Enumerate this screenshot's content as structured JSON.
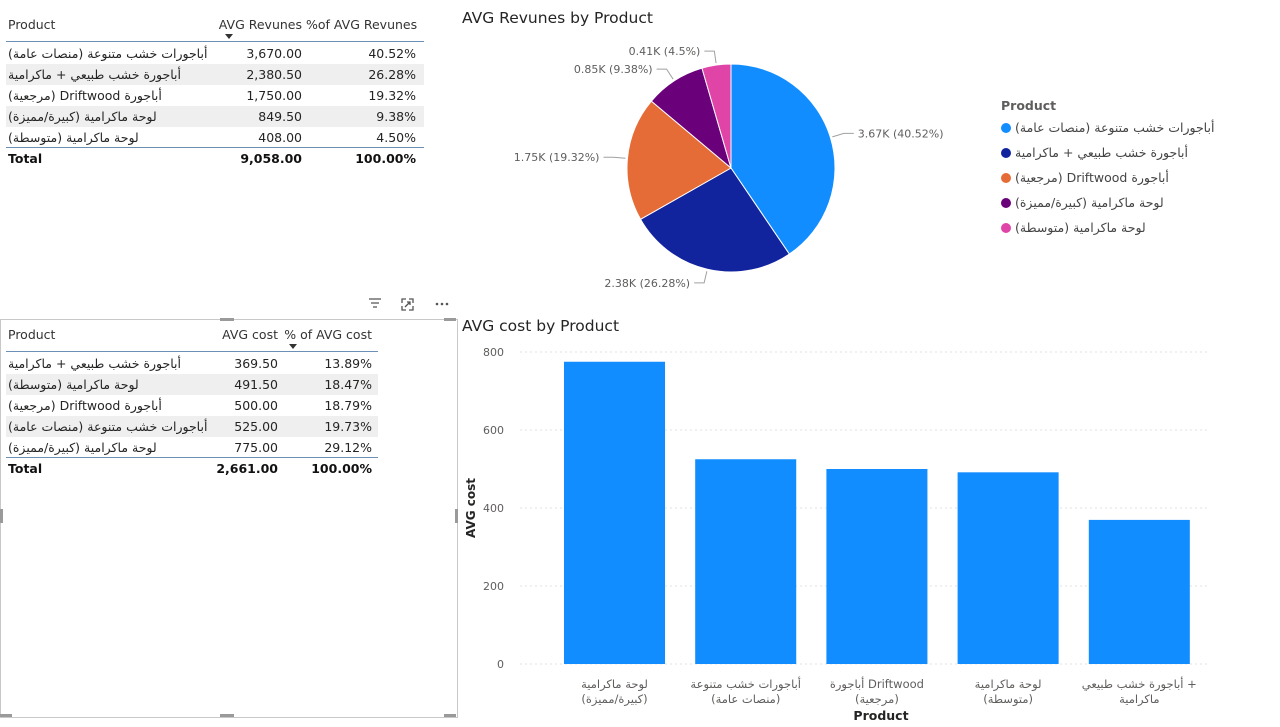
{
  "revenue_table": {
    "headers": [
      "Product",
      "AVG Revunes",
      "%of AVG Revunes"
    ],
    "rows": [
      {
        "product": "أباجورات خشب متنوعة (منصات عامة)",
        "value": "3,670.00",
        "pct": "40.52%"
      },
      {
        "product": "أباجورة خشب طبيعي + ماكرامية",
        "value": "2,380.50",
        "pct": "26.28%"
      },
      {
        "product": "أباجورة Driftwood (مرجعية)",
        "value": "1,750.00",
        "pct": "19.32%"
      },
      {
        "product": "لوحة ماكرامية (كبيرة/مميزة)",
        "value": "849.50",
        "pct": "9.38%"
      },
      {
        "product": "لوحة ماكرامية (متوسطة)",
        "value": "408.00",
        "pct": "4.50%"
      }
    ],
    "total": {
      "label": "Total",
      "value": "9,058.00",
      "pct": "100.00%"
    }
  },
  "cost_table": {
    "headers": [
      "Product",
      "AVG cost",
      "% of AVG cost"
    ],
    "rows": [
      {
        "product": "أباجورة خشب طبيعي + ماكرامية",
        "value": "369.50",
        "pct": "13.89%"
      },
      {
        "product": "لوحة ماكرامية (متوسطة)",
        "value": "491.50",
        "pct": "18.47%"
      },
      {
        "product": "أباجورة Driftwood (مرجعية)",
        "value": "500.00",
        "pct": "18.79%"
      },
      {
        "product": "أباجورات خشب متنوعة (منصات عامة)",
        "value": "525.00",
        "pct": "19.73%"
      },
      {
        "product": "لوحة ماكرامية (كبيرة/مميزة)",
        "value": "775.00",
        "pct": "29.12%"
      }
    ],
    "total": {
      "label": "Total",
      "value": "2,661.00",
      "pct": "100.00%"
    }
  },
  "visual_header_icons": [
    "filter-icon",
    "focus-mode-icon",
    "more-options-icon"
  ],
  "chart_data": [
    {
      "type": "pie",
      "title": "AVG Revunes by Product",
      "legend_title": "Product",
      "legend_position": "right",
      "slices": [
        {
          "label": "أباجورات خشب متنوعة (منصات عامة)",
          "value": 3670,
          "data_label": "3.67K (40.52%)",
          "color": "#118dff"
        },
        {
          "label": "أباجورة خشب طبيعي + ماكرامية",
          "value": 2380.5,
          "data_label": "2.38K (26.28%)",
          "color": "#12239e"
        },
        {
          "label": "أباجورة Driftwood (مرجعية)",
          "value": 1750,
          "data_label": "1.75K (19.32%)",
          "color": "#e66c37"
        },
        {
          "label": "لوحة ماكرامية (كبيرة/مميزة)",
          "value": 849.5,
          "data_label": "0.85K (9.38%)",
          "color": "#6b007b"
        },
        {
          "label": "لوحة ماكرامية (متوسطة)",
          "value": 408,
          "data_label": "0.41K (4.5%)",
          "color": "#e044a7"
        }
      ]
    },
    {
      "type": "bar",
      "title": "AVG cost by Product",
      "xlabel": "Product",
      "ylabel": "AVG cost",
      "ylim": [
        0,
        800
      ],
      "yticks": [
        "0",
        "200",
        "400",
        "600",
        "800"
      ],
      "ytick_values": [
        0,
        200,
        400,
        600,
        800
      ],
      "grid": true,
      "color": "#118dff",
      "categories": [
        [
          "لوحة ماكرامية",
          "(كبيرة/مميزة)"
        ],
        [
          "أباجورات خشب متنوعة",
          "(منصات عامة)"
        ],
        [
          "أباجورة Driftwood",
          "(مرجعية)"
        ],
        [
          "لوحة ماكرامية",
          "(متوسطة)"
        ],
        [
          "أباجورة خشب طبيعي +",
          "ماكرامية"
        ]
      ],
      "values": [
        775,
        525,
        500,
        491.5,
        369.5
      ]
    }
  ]
}
